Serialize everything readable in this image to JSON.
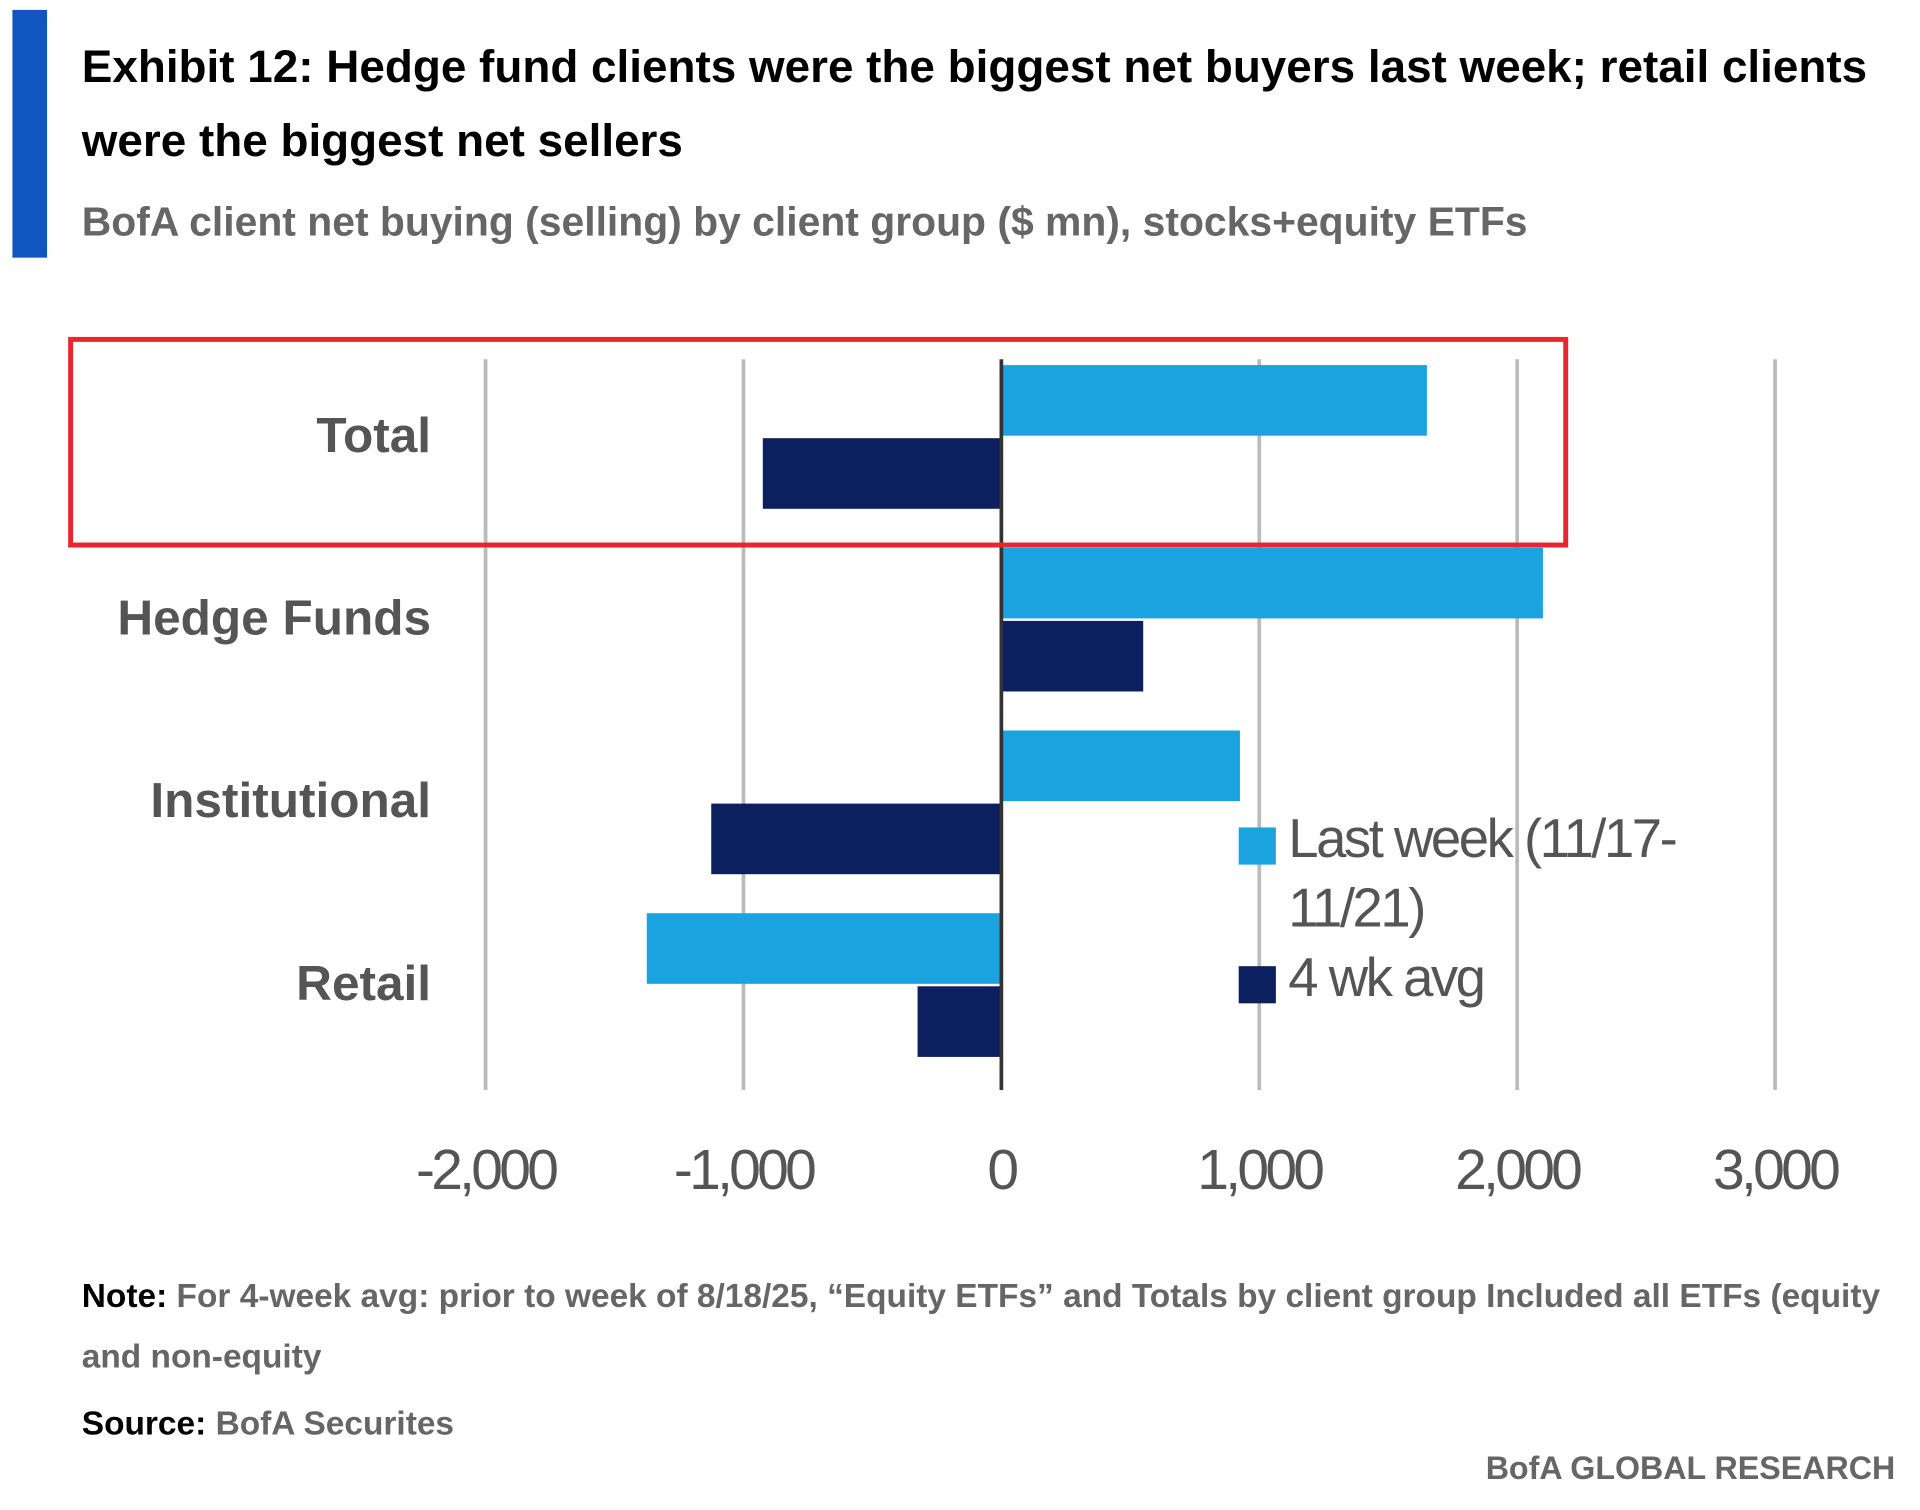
{
  "chart_data": {
    "type": "hbar",
    "title": "Exhibit 12: Hedge fund clients were the biggest net buyers last week; retail clients were the biggest net sellers",
    "subtitle": "BofA client net buying (selling) by client group ($ mn), stocks+equity ETFs",
    "categories": [
      "Total",
      "Hedge Funds",
      "Institutional",
      "Retail"
    ],
    "series": [
      {
        "name": "Last week (11/17-11/21)",
        "color": "#1ba3df",
        "values": [
          1650,
          2100,
          925,
          -1375
        ]
      },
      {
        "name": "4 wk avg",
        "color": "#0c1f5e",
        "values": [
          -925,
          550,
          -1125,
          -325
        ]
      }
    ],
    "xlim": [
      -2000,
      3000
    ],
    "xticks": [
      {
        "value": -2000,
        "label": "-2,000"
      },
      {
        "value": -1000,
        "label": "-1,000"
      },
      0,
      {
        "value": 1000,
        "label": "1,000"
      },
      {
        "value": 2000,
        "label": "2,000"
      },
      {
        "value": 3000,
        "label": "3,000"
      }
    ],
    "grid": true,
    "legend": "right",
    "note_label": "Note:",
    "note": "For 4-week avg: prior to week of 8/18/25, “Equity ETFs” and Totals by client group Included all ETFs (equity and non-equity",
    "source_label": "Source:",
    "source": "BofA Securites",
    "footer": "BofA GLOBAL RESEARCH"
  }
}
